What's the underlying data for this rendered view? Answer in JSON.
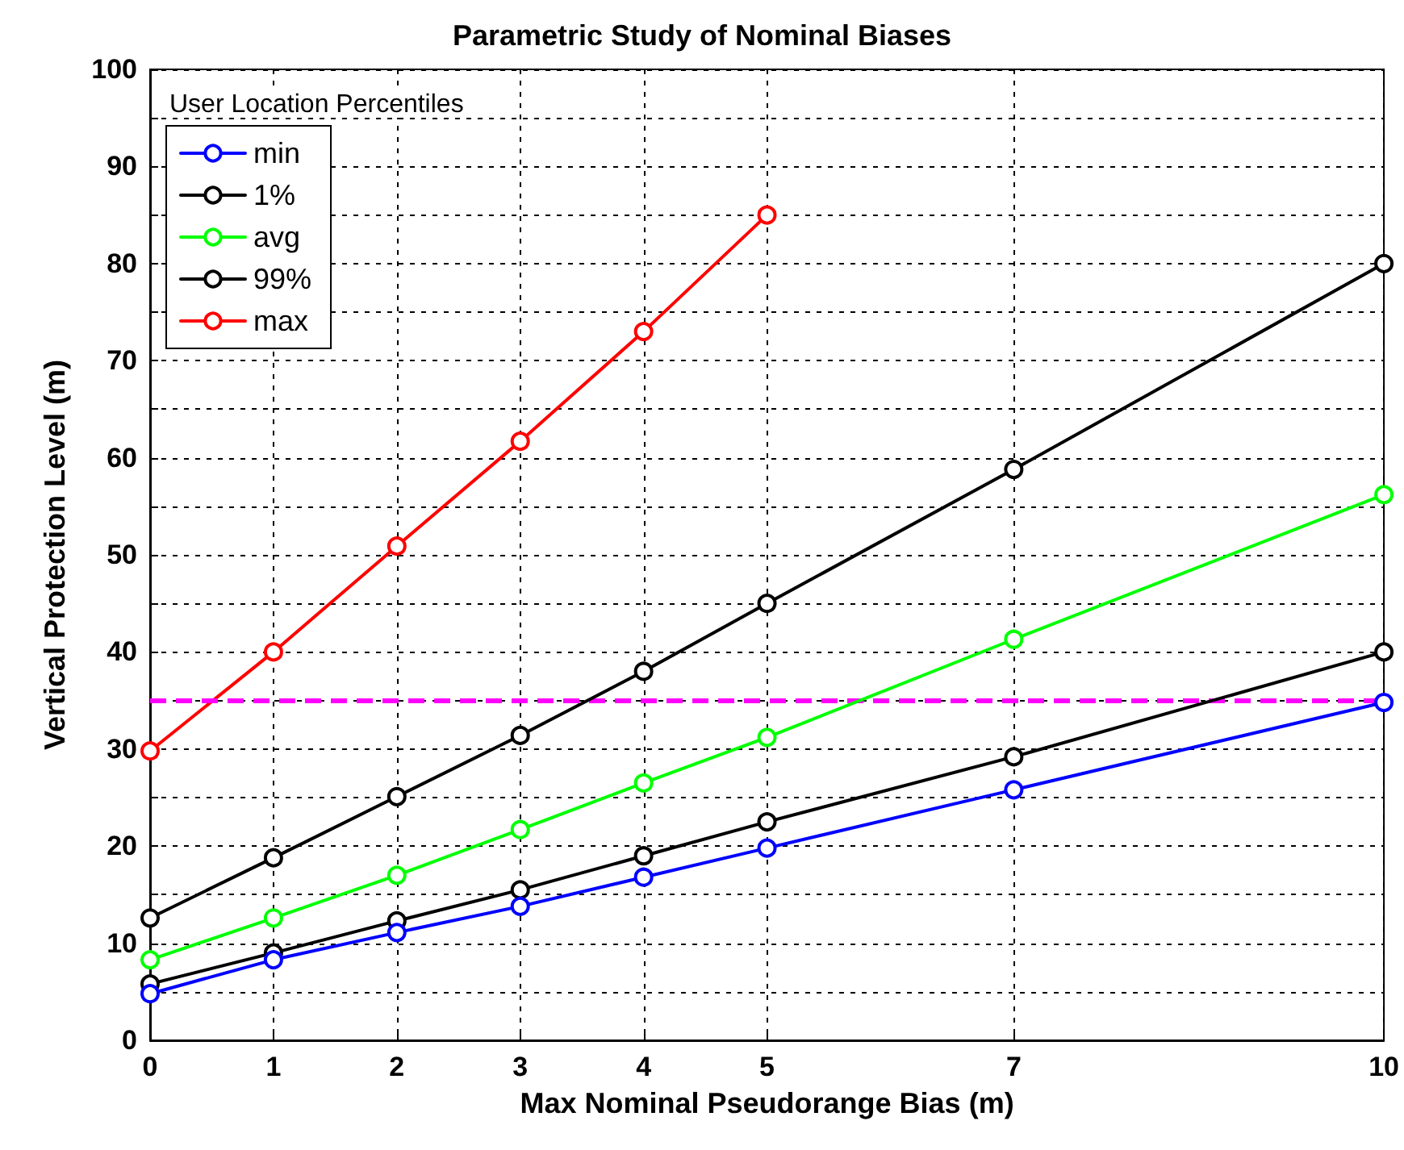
{
  "chart_data": {
    "type": "line",
    "title": "Parametric Study of Nominal Biases",
    "xlabel": "Max Nominal Pseudorange Bias (m)",
    "ylabel": "Vertical Protection Level (m)",
    "legend_title": "User Location Percentiles",
    "x": [
      0,
      1,
      2,
      3,
      4,
      5,
      7,
      10
    ],
    "series": [
      {
        "name": "min",
        "color": "#0000ff",
        "values": [
          4.8,
          8.3,
          11.1,
          13.8,
          16.8,
          19.8,
          25.8,
          34.8
        ]
      },
      {
        "name": "1%",
        "color": "#000000",
        "values": [
          5.8,
          9,
          12.3,
          15.5,
          19,
          22.5,
          29.2,
          40
        ]
      },
      {
        "name": "avg",
        "color": "#00ff00",
        "values": [
          8.3,
          12.6,
          17,
          21.7,
          26.5,
          31.2,
          41.3,
          56.2
        ]
      },
      {
        "name": "99%",
        "color": "#000000",
        "values": [
          12.6,
          18.8,
          25.1,
          31.4,
          38,
          45,
          58.8,
          80
        ]
      },
      {
        "name": "max",
        "color": "#ff0000",
        "values": [
          29.8,
          40,
          50.9,
          61.7,
          73,
          85,
          null,
          null
        ]
      }
    ],
    "xlim": [
      0,
      10
    ],
    "xticks": [
      0,
      1,
      2,
      3,
      4,
      5,
      7,
      10
    ],
    "ylim": [
      0,
      100
    ],
    "yticks": [
      0,
      {
        "value": 5,
        "label": null
      },
      10,
      {
        "value": 15,
        "label": null
      },
      20,
      {
        "value": 25,
        "label": null
      },
      30,
      {
        "value": 35,
        "label": null
      },
      40,
      {
        "value": 45,
        "label": null
      },
      50,
      {
        "value": 55,
        "label": null
      },
      60,
      {
        "value": 65,
        "label": null
      },
      70,
      {
        "value": 75,
        "label": null
      },
      80,
      {
        "value": 85,
        "label": null
      },
      90,
      {
        "value": 95,
        "label": null
      },
      100
    ],
    "ref_lines": [
      {
        "axis": "y",
        "value": 35,
        "color": "#ff00ff",
        "line_style": "dashed"
      }
    ],
    "grid": true,
    "legend": "top left",
    "marker": "circle",
    "line_style": "solid"
  }
}
